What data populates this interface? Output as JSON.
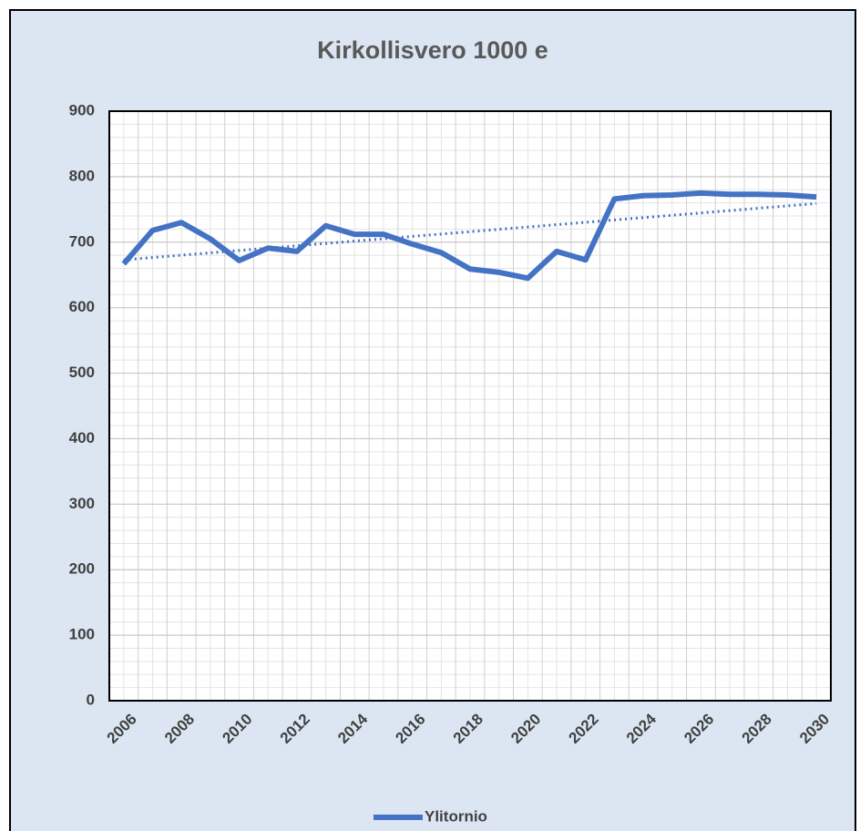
{
  "chart_data": {
    "type": "line",
    "title": "Kirkollisvero 1000 e",
    "categories": [
      "2006",
      null,
      "2008",
      null,
      "2010",
      null,
      "2012",
      null,
      "2014",
      null,
      "2016",
      null,
      "2018",
      null,
      "2020",
      null,
      "2022",
      null,
      "2024",
      null,
      "2026",
      null,
      "2028",
      null,
      "2030"
    ],
    "series": [
      {
        "name": "Ylitornio",
        "color": "#4472c4",
        "values": [
          667,
          718,
          730,
          705,
          672,
          691,
          686,
          725,
          712,
          712,
          697,
          684,
          659,
          654,
          645,
          686,
          673,
          766,
          771,
          772,
          775,
          773,
          773,
          772,
          769
        ]
      }
    ],
    "trendline": {
      "start": 673,
      "end": 759,
      "color": "#4472c4",
      "style": "dotted"
    },
    "ylim": [
      0,
      900
    ],
    "yticks": [
      0,
      100,
      200,
      300,
      400,
      500,
      600,
      700,
      800,
      900
    ],
    "grid": true,
    "minor_grid_divisions": 5,
    "legend": "bottom"
  }
}
